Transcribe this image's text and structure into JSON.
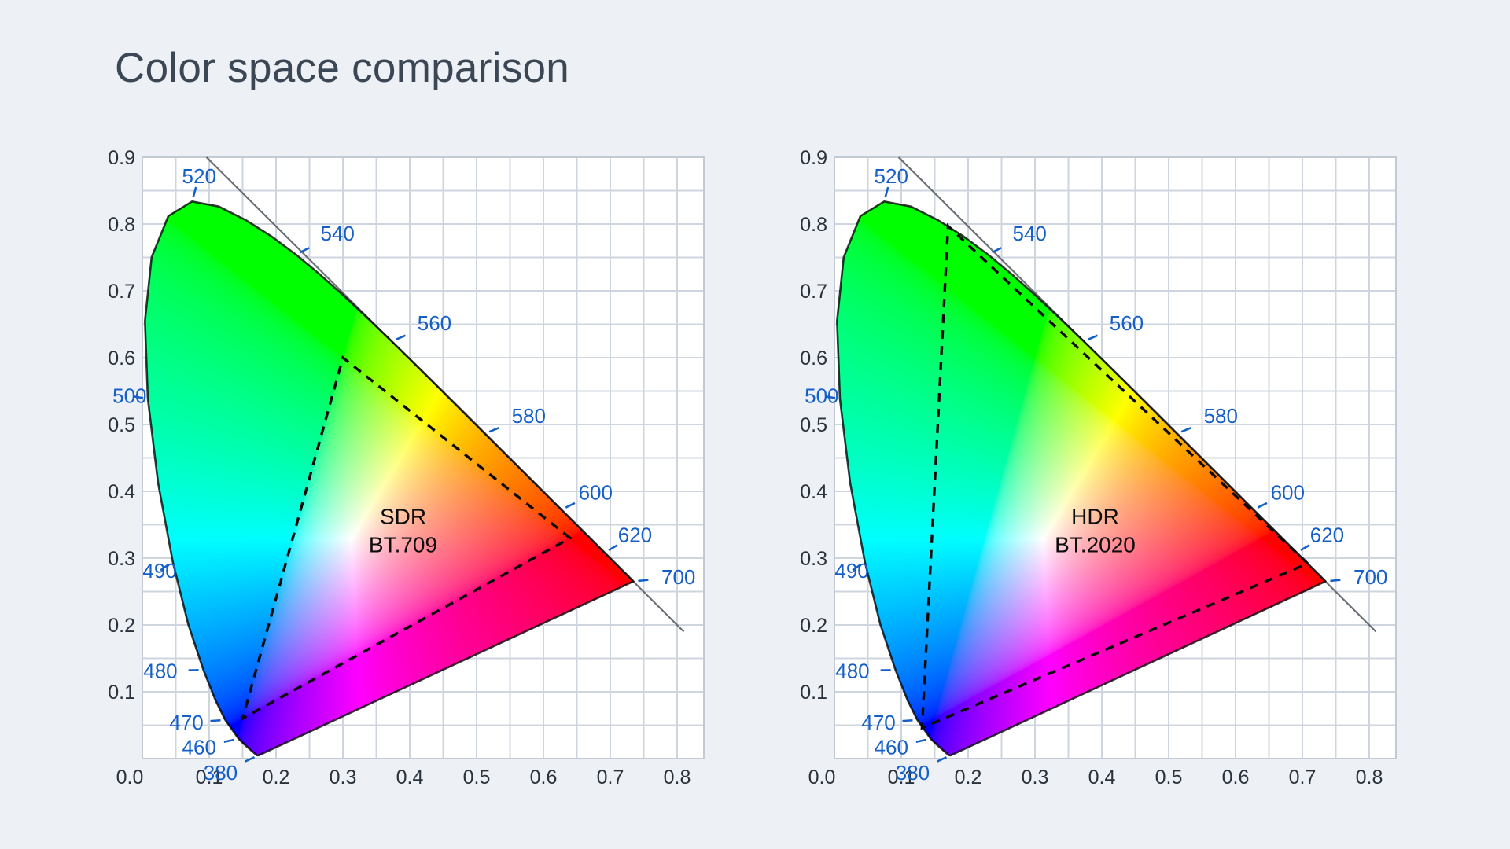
{
  "page": {
    "title": "Color space comparison"
  },
  "theme": {
    "background": "#edf0f4",
    "plot_background": "#ffffff",
    "grid_color": "#cfd5de",
    "plot_border_color": "#c3cad4",
    "axis_text_color": "#2a323c",
    "wavelength_text_color": "#155fc9",
    "title_color": "#3b4754",
    "locus_outline_color": "#000000",
    "tangent_line_color": "#596066",
    "triangle_color": "#0b0b0b",
    "gamut_text_color": "#0d0d0d"
  },
  "chart_data": {
    "type": "chromaticity-diagram",
    "title": "Color space comparison",
    "description": "Two CIE 1931 xy chromaticity diagrams comparing the SDR BT.709 gamut triangle with the HDR BT.2020 gamut triangle",
    "x_axis": {
      "tick_labels": [
        "0.0",
        "0.1",
        "0.2",
        "0.3",
        "0.4",
        "0.5",
        "0.6",
        "0.7",
        "0.8"
      ],
      "tick_values": [
        0,
        0.1,
        0.2,
        0.3,
        0.4,
        0.5,
        0.6,
        0.7,
        0.8
      ],
      "range": [
        0,
        0.84
      ],
      "grid_step": 0.05
    },
    "y_axis": {
      "tick_labels": [
        "0.1",
        "0.2",
        "0.3",
        "0.4",
        "0.5",
        "0.6",
        "0.7",
        "0.8",
        "0.9"
      ],
      "tick_values": [
        0.1,
        0.2,
        0.3,
        0.4,
        0.5,
        0.6,
        0.7,
        0.8,
        0.9
      ],
      "range": [
        0,
        0.9
      ],
      "grid_step": 0.05
    },
    "white_point": [
      0.3127,
      0.329
    ],
    "spectral_locus_xy": [
      [
        380,
        0.1741,
        0.005
      ],
      [
        400,
        0.1733,
        0.0048
      ],
      [
        420,
        0.1714,
        0.0051
      ],
      [
        430,
        0.1689,
        0.0069
      ],
      [
        440,
        0.1644,
        0.0109
      ],
      [
        450,
        0.1566,
        0.0177
      ],
      [
        460,
        0.144,
        0.0297
      ],
      [
        470,
        0.1241,
        0.0578
      ],
      [
        475,
        0.1096,
        0.0868
      ],
      [
        480,
        0.0913,
        0.1327
      ],
      [
        485,
        0.0687,
        0.2007
      ],
      [
        490,
        0.0454,
        0.295
      ],
      [
        495,
        0.0235,
        0.4127
      ],
      [
        500,
        0.0082,
        0.5384
      ],
      [
        505,
        0.0039,
        0.6548
      ],
      [
        510,
        0.0139,
        0.7502
      ],
      [
        515,
        0.0389,
        0.812
      ],
      [
        520,
        0.0743,
        0.8338
      ],
      [
        525,
        0.1142,
        0.8262
      ],
      [
        530,
        0.1547,
        0.8059
      ],
      [
        535,
        0.1929,
        0.7816
      ],
      [
        540,
        0.2296,
        0.7543
      ],
      [
        545,
        0.2658,
        0.7243
      ],
      [
        550,
        0.3016,
        0.6923
      ],
      [
        555,
        0.3373,
        0.6589
      ],
      [
        560,
        0.3731,
        0.6245
      ],
      [
        565,
        0.4087,
        0.5896
      ],
      [
        570,
        0.4441,
        0.5547
      ],
      [
        575,
        0.4788,
        0.5202
      ],
      [
        580,
        0.5125,
        0.4866
      ],
      [
        585,
        0.5448,
        0.4544
      ],
      [
        590,
        0.5752,
        0.4242
      ],
      [
        595,
        0.6029,
        0.3965
      ],
      [
        600,
        0.627,
        0.3725
      ],
      [
        605,
        0.6482,
        0.3514
      ],
      [
        610,
        0.6658,
        0.334
      ],
      [
        620,
        0.6915,
        0.3083
      ],
      [
        630,
        0.7079,
        0.292
      ],
      [
        640,
        0.719,
        0.2809
      ],
      [
        650,
        0.726,
        0.274
      ],
      [
        660,
        0.73,
        0.27
      ],
      [
        680,
        0.7334,
        0.2666
      ],
      [
        700,
        0.7347,
        0.2653
      ]
    ],
    "wavelength_labels": [
      {
        "text": "520",
        "point": [
          0.0743,
          0.8338
        ],
        "label": [
          0.085,
          0.872
        ]
      },
      {
        "text": "540",
        "point": [
          0.2296,
          0.7543
        ],
        "label": [
          0.292,
          0.786
        ]
      },
      {
        "text": "560",
        "point": [
          0.3731,
          0.6245
        ],
        "label": [
          0.437,
          0.652
        ]
      },
      {
        "text": "580",
        "point": [
          0.5125,
          0.4866
        ],
        "label": [
          0.578,
          0.513
        ]
      },
      {
        "text": "600",
        "point": [
          0.627,
          0.3725
        ],
        "label": [
          0.678,
          0.398
        ]
      },
      {
        "text": "620",
        "point": [
          0.6915,
          0.3083
        ],
        "label": [
          0.737,
          0.335
        ]
      },
      {
        "text": "700",
        "point": [
          0.7347,
          0.2653
        ],
        "label": [
          0.802,
          0.272
        ]
      },
      {
        "text": "500",
        "point": [
          0.0082,
          0.5384
        ],
        "label": [
          -0.019,
          0.543
        ]
      },
      {
        "text": "490",
        "point": [
          0.0454,
          0.295
        ],
        "label": [
          0.026,
          0.281
        ]
      },
      {
        "text": "480",
        "point": [
          0.0913,
          0.1327
        ],
        "label": [
          0.027,
          0.131
        ]
      },
      {
        "text": "470",
        "point": [
          0.1241,
          0.0578
        ],
        "label": [
          0.066,
          0.054
        ]
      },
      {
        "text": "460",
        "point": [
          0.144,
          0.0297
        ],
        "label": [
          0.085,
          0.017
        ]
      },
      {
        "text": "380",
        "point": [
          0.1741,
          0.005
        ],
        "label": [
          0.117,
          -0.021
        ]
      }
    ],
    "tangent_line": {
      "from": [
        0.096,
        0.9
      ],
      "to": [
        0.81,
        0.19
      ]
    },
    "charts": [
      {
        "id": "sdr",
        "label_lines": [
          "SDR",
          "BT.709"
        ],
        "label_pos": [
          0.39,
          0.362
        ],
        "gamut": {
          "name": "BT.709",
          "red": [
            0.64,
            0.33
          ],
          "green": [
            0.3,
            0.6
          ],
          "blue": [
            0.15,
            0.06
          ]
        }
      },
      {
        "id": "hdr",
        "label_lines": [
          "HDR",
          "BT.2020"
        ],
        "label_pos": [
          0.39,
          0.362
        ],
        "gamut": {
          "name": "BT.2020",
          "red": [
            0.708,
            0.292
          ],
          "green": [
            0.17,
            0.797
          ],
          "blue": [
            0.131,
            0.046
          ]
        }
      }
    ]
  }
}
